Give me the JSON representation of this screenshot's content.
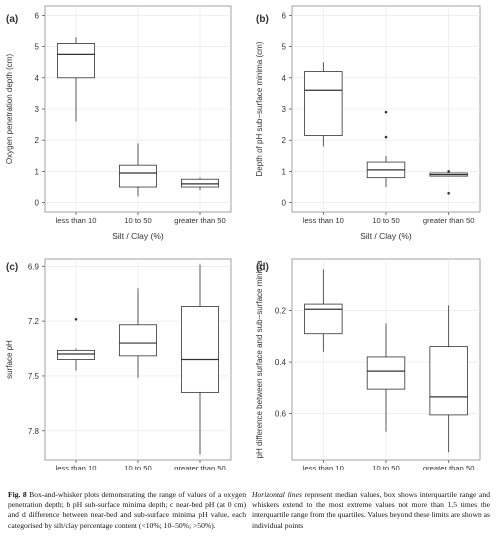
{
  "chart_data": [
    {
      "type": "box",
      "panel_label": "(a)",
      "xlabel": "Silt / Clay (%)",
      "ylabel": "Oxygen penetration depth (cm)",
      "ylim": [
        6.3,
        -0.3
      ],
      "y_reversed": true,
      "yticks": [
        0,
        1,
        2,
        3,
        4,
        5,
        6
      ],
      "categories": [
        "less than 10",
        "10 to 50",
        "greater than 50"
      ],
      "boxes": [
        {
          "whisker_low": 2.6,
          "q1": 4.0,
          "median": 4.75,
          "q3": 5.1,
          "whisker_high": 5.3,
          "outliers": []
        },
        {
          "whisker_low": 0.2,
          "q1": 0.5,
          "median": 0.95,
          "q3": 1.2,
          "whisker_high": 1.9,
          "outliers": []
        },
        {
          "whisker_low": 0.4,
          "q1": 0.5,
          "median": 0.6,
          "q3": 0.75,
          "whisker_high": 0.8,
          "outliers": []
        }
      ]
    },
    {
      "type": "box",
      "panel_label": "(b)",
      "xlabel": "Silt / Clay (%)",
      "ylabel": "Depth of pH sub−surface minima (cm)",
      "ylim": [
        6.3,
        -0.3
      ],
      "y_reversed": true,
      "yticks": [
        0,
        1,
        2,
        3,
        4,
        5,
        6
      ],
      "categories": [
        "less than 10",
        "10 to 50",
        "greater than 50"
      ],
      "boxes": [
        {
          "whisker_low": 1.8,
          "q1": 2.15,
          "median": 3.6,
          "q3": 4.2,
          "whisker_high": 4.5,
          "outliers": []
        },
        {
          "whisker_low": 0.5,
          "q1": 0.8,
          "median": 1.05,
          "q3": 1.3,
          "whisker_high": 1.5,
          "outliers": [
            2.1,
            2.9
          ]
        },
        {
          "whisker_low": 0.85,
          "q1": 0.85,
          "median": 0.9,
          "q3": 0.95,
          "whisker_high": 0.95,
          "outliers": [
            0.3,
            1.0
          ]
        }
      ]
    },
    {
      "type": "box",
      "panel_label": "(c)",
      "xlabel": "",
      "ylabel": "surface pH",
      "ylim": [
        6.86,
        7.96
      ],
      "y_reversed": false,
      "yticks": [
        6.9,
        7.2,
        7.5,
        7.8
      ],
      "categories": [
        "less than 10",
        "10 to 50",
        "greater than 50"
      ],
      "boxes": [
        {
          "whisker_low": 7.35,
          "q1": 7.36,
          "median": 7.38,
          "q3": 7.41,
          "whisker_high": 7.47,
          "outliers": [
            7.19
          ]
        },
        {
          "whisker_low": 7.02,
          "q1": 7.22,
          "median": 7.32,
          "q3": 7.39,
          "whisker_high": 7.51,
          "outliers": []
        },
        {
          "whisker_low": 6.89,
          "q1": 7.12,
          "median": 7.41,
          "q3": 7.59,
          "whisker_high": 7.93,
          "outliers": []
        }
      ]
    },
    {
      "type": "box",
      "panel_label": "(d)",
      "xlabel": "Silt / Clay (%)",
      "ylabel": "pH difference between surface and sub−surface minima",
      "ylim": [
        0.0,
        0.78
      ],
      "y_reversed": false,
      "yticks": [
        0.2,
        0.4,
        0.6
      ],
      "categories": [
        "less than 10",
        "10 to 50",
        "greater than 50"
      ],
      "boxes": [
        {
          "whisker_low": 0.04,
          "q1": 0.175,
          "median": 0.195,
          "q3": 0.29,
          "whisker_high": 0.36,
          "outliers": []
        },
        {
          "whisker_low": 0.25,
          "q1": 0.38,
          "median": 0.435,
          "q3": 0.505,
          "whisker_high": 0.67,
          "outliers": []
        },
        {
          "whisker_low": 0.18,
          "q1": 0.34,
          "median": 0.535,
          "q3": 0.605,
          "whisker_high": 0.75,
          "outliers": []
        }
      ]
    }
  ],
  "caption": {
    "fig_label": "Fig. 8",
    "left_text": " Box-and-whisker plots demonstrating the range of values of a oxygen penetration depth; b pH sub-surface minima depth; c near-bed pH (at 0 cm) and d difference between near-bed and sub-surface minima pH value, each categorised by silt/clay percentage content (<10%; 10–50%; >50%).",
    "right_italic": "Horizontal lines",
    "right_text": " represent median values, box shows interquartile range and whiskers extend to the most extreme values not more than 1.5 times the interquartile range from the quartiles. Values beyond these limits are shown as individual points"
  }
}
